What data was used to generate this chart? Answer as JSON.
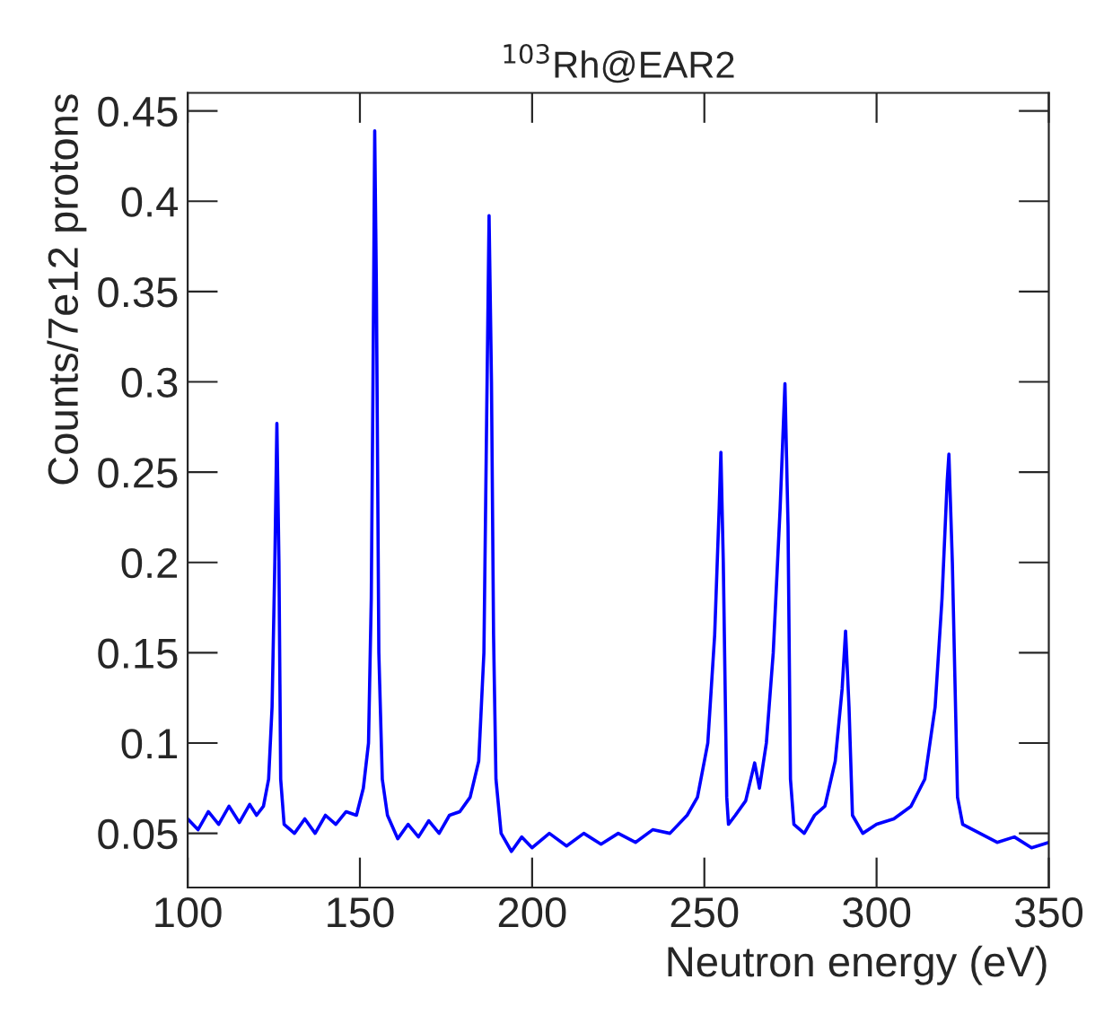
{
  "chart_data": {
    "type": "line",
    "title": "$^{103}$Rh@EAR2",
    "xlabel": "Neutron energy (eV)",
    "ylabel": "Counts/7e12 protons",
    "x": [
      100,
      103,
      106,
      109,
      112,
      115,
      118,
      120,
      122,
      123.5,
      124.5,
      125.3,
      125.9,
      126.5,
      127,
      128,
      131,
      134,
      137,
      140,
      143,
      146,
      149,
      151,
      152.5,
      153.3,
      153.8,
      154.3,
      154.8,
      155.5,
      156.5,
      158,
      161,
      164,
      167,
      170,
      173,
      176,
      179,
      182,
      184.5,
      186,
      186.8,
      187.5,
      188.2,
      188.8,
      189.5,
      191,
      194,
      197,
      200,
      205,
      210,
      215,
      220,
      225,
      230,
      235,
      240,
      245,
      248,
      251,
      253,
      254.3,
      254.8,
      255.5,
      256.5,
      257,
      259,
      262,
      264.6,
      266,
      268,
      270,
      272,
      273.4,
      274.3,
      275,
      276,
      279,
      282,
      285,
      288,
      290,
      291,
      292,
      293,
      296,
      300,
      305,
      310,
      314,
      317,
      319,
      320.5,
      321,
      322,
      323.5,
      325,
      330,
      335,
      340,
      345,
      350
    ],
    "series": [
      {
        "color": "#0000ff",
        "values": [
          0.058,
          0.052,
          0.062,
          0.055,
          0.065,
          0.056,
          0.066,
          0.06,
          0.065,
          0.08,
          0.12,
          0.2,
          0.277,
          0.2,
          0.08,
          0.055,
          0.05,
          0.058,
          0.05,
          0.06,
          0.055,
          0.062,
          0.06,
          0.075,
          0.1,
          0.18,
          0.3,
          0.439,
          0.35,
          0.15,
          0.08,
          0.06,
          0.047,
          0.055,
          0.048,
          0.057,
          0.05,
          0.06,
          0.062,
          0.07,
          0.09,
          0.15,
          0.28,
          0.392,
          0.3,
          0.16,
          0.08,
          0.05,
          0.04,
          0.048,
          0.042,
          0.05,
          0.043,
          0.05,
          0.044,
          0.05,
          0.045,
          0.052,
          0.05,
          0.06,
          0.07,
          0.1,
          0.16,
          0.23,
          0.261,
          0.2,
          0.07,
          0.055,
          0.06,
          0.068,
          0.089,
          0.075,
          0.1,
          0.15,
          0.23,
          0.299,
          0.22,
          0.08,
          0.055,
          0.05,
          0.06,
          0.065,
          0.09,
          0.13,
          0.162,
          0.12,
          0.06,
          0.05,
          0.055,
          0.058,
          0.065,
          0.08,
          0.12,
          0.18,
          0.245,
          0.26,
          0.2,
          0.07,
          0.055,
          0.05,
          0.045,
          0.048,
          0.042,
          0.045
        ]
      }
    ],
    "xlim": [
      100,
      350
    ],
    "xticks": [
      100,
      150,
      200,
      250,
      300,
      350
    ],
    "ylim": [
      0.02,
      0.46
    ],
    "yticks": [
      0.05,
      0.1,
      0.15,
      0.2,
      0.25,
      0.3,
      0.35,
      0.4,
      0.45
    ],
    "grid": false,
    "legend": false,
    "marker": "none",
    "line_style": "solid"
  }
}
